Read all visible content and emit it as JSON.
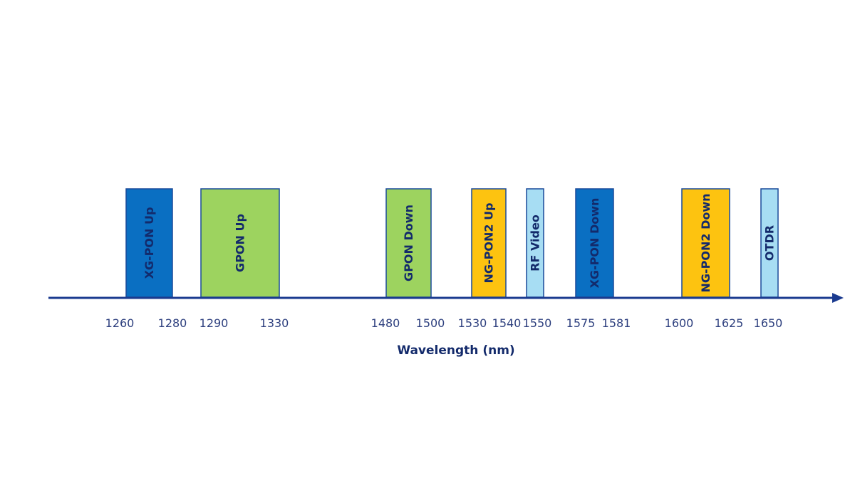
{
  "diagram": {
    "axis_title": "Wavelength (nm)",
    "tick_labels": [
      "1260",
      "1280",
      "1290",
      "1330",
      "1480",
      "1500",
      "1530",
      "1540",
      "1550",
      "1575",
      "1581",
      "1600",
      "1625",
      "1650"
    ],
    "bands": [
      {
        "label": "XG-PON Up",
        "start": "1260",
        "end": "1280",
        "color": "#0a6fc2"
      },
      {
        "label": "GPON Up",
        "start": "1290",
        "end": "1330",
        "color": "#9dd35f"
      },
      {
        "label": "GPON Down",
        "start": "1480",
        "end": "1500",
        "color": "#9dd35f"
      },
      {
        "label": "NG-PON2 Up",
        "start": "1530",
        "end": "1540",
        "color": "#fdc310"
      },
      {
        "label": "RF Video",
        "start": "1550",
        "end": "1550",
        "color": "#a7ddf3"
      },
      {
        "label": "XG-PON Down",
        "start": "1575",
        "end": "1581",
        "color": "#0a6fc2"
      },
      {
        "label": "NG-PON2 Down",
        "start": "1600",
        "end": "1625",
        "color": "#fdc310"
      },
      {
        "label": "OTDR",
        "start": "1650",
        "end": "1650",
        "color": "#a7ddf3"
      }
    ],
    "colors": {
      "axis": "#1a3a8f",
      "text": "#132a6b",
      "border": "#1a4a9a"
    }
  }
}
